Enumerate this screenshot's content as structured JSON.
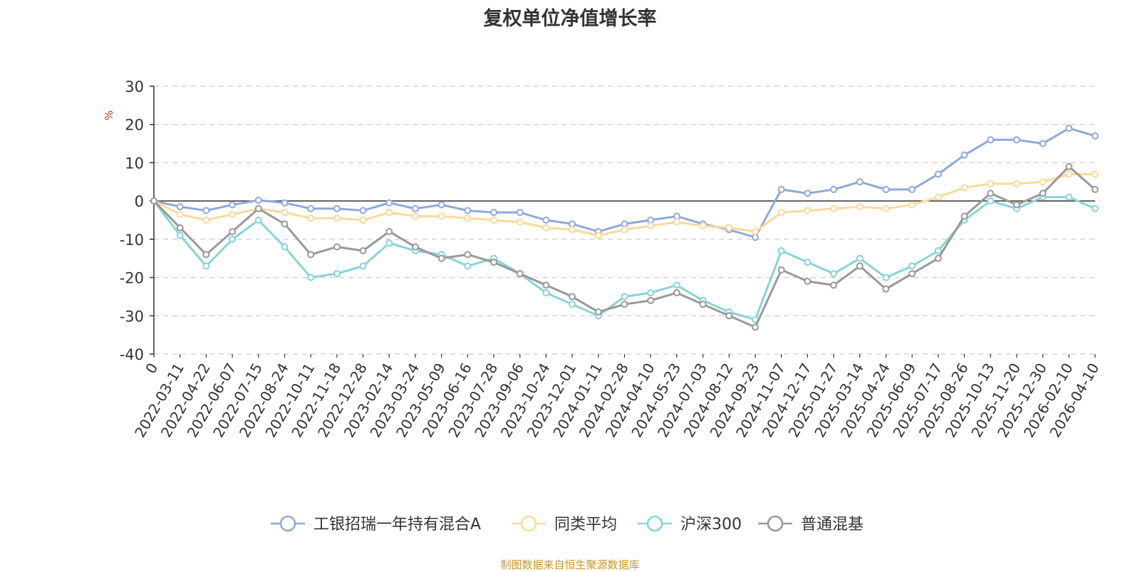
{
  "chart_data": {
    "type": "line",
    "title": "复权单位净值增长率",
    "ylabel": "%",
    "xlabel": "",
    "ylim": [
      -40,
      30
    ],
    "yticks": [
      30,
      20,
      10,
      0,
      -10,
      -20,
      -30,
      -40
    ],
    "grid": true,
    "legend_position": "bottom",
    "categories": [
      "0",
      "2022-03-11",
      "2022-04-22",
      "2022-06-07",
      "2022-07-15",
      "2022-08-24",
      "2022-10-11",
      "2022-11-18",
      "2022-12-28",
      "2023-02-14",
      "2023-03-24",
      "2023-05-09",
      "2023-06-16",
      "2023-07-28",
      "2023-09-06",
      "2023-10-24",
      "2023-12-01",
      "2024-01-11",
      "2024-02-28",
      "2024-04-10",
      "2024-05-23",
      "2024-07-03",
      "2024-08-12",
      "2024-09-23",
      "2024-11-07",
      "2024-12-17",
      "2025-01-27",
      "2025-03-14",
      "2025-04-24",
      "2025-06-09",
      "2025-07-17",
      "2025-08-26",
      "2025-10-13",
      "2025-11-20",
      "2025-12-30",
      "2026-02-10",
      "2026-04-10"
    ],
    "series": [
      {
        "name": "工银招瑞一年持有混合A",
        "color": "#8fa9d9",
        "values": [
          0,
          -1.5,
          -2.5,
          -1.0,
          0.2,
          -0.5,
          -2.0,
          -2.0,
          -2.5,
          -0.5,
          -2.0,
          -1.0,
          -2.5,
          -3.0,
          -3.0,
          -5.0,
          -6.0,
          -8.0,
          -6.0,
          -5.0,
          -4.0,
          -6.0,
          -7.5,
          -9.5,
          3.0,
          2.0,
          3.0,
          5.0,
          3.0,
          3.0,
          7.0,
          12.0,
          16.0,
          16.0,
          15.0,
          19.0,
          17.0
        ]
      },
      {
        "name": "同类平均",
        "color": "#fcd99b",
        "values": [
          0,
          -3.5,
          -5.0,
          -3.5,
          -2.0,
          -3.0,
          -4.5,
          -4.5,
          -5.0,
          -3.0,
          -4.0,
          -4.0,
          -4.5,
          -5.0,
          -5.5,
          -7.0,
          -7.5,
          -9.0,
          -7.5,
          -6.5,
          -5.5,
          -6.5,
          -7.0,
          -8.0,
          -3.0,
          -2.5,
          -2.0,
          -1.5,
          -2.0,
          -1.0,
          1.0,
          3.5,
          4.5,
          4.5,
          5.0,
          7.0,
          7.0
        ]
      },
      {
        "name": "沪深300",
        "color": "#88d3d9",
        "values": [
          0,
          -9.0,
          -17.0,
          -10.0,
          -5.0,
          -12.0,
          -20.0,
          -19.0,
          -17.0,
          -11.0,
          -13.0,
          -14.0,
          -17.0,
          -15.0,
          -19.0,
          -24.0,
          -27.0,
          -30.0,
          -25.0,
          -24.0,
          -22.0,
          -26.0,
          -29.0,
          -31.0,
          -13.0,
          -16.0,
          -19.0,
          -15.0,
          -20.0,
          -17.0,
          -13.0,
          -5.0,
          0.0,
          -2.0,
          1.0,
          1.0,
          -2.0
        ]
      },
      {
        "name": "普通混基",
        "color": "#999999",
        "values": [
          0,
          -7.0,
          -14.0,
          -8.0,
          -2.0,
          -6.0,
          -14.0,
          -12.0,
          -13.0,
          -8.0,
          -12.0,
          -15.0,
          -14.0,
          -16.0,
          -19.0,
          -22.0,
          -25.0,
          -29.0,
          -27.0,
          -26.0,
          -24.0,
          -27.0,
          -30.0,
          -33.0,
          -18.0,
          -21.0,
          -22.0,
          -17.0,
          -23.0,
          -19.0,
          -15.0,
          -4.0,
          2.0,
          -1.0,
          2.0,
          9.0,
          3.0
        ]
      }
    ]
  },
  "source": "制图数据来自恒生聚源数据库"
}
